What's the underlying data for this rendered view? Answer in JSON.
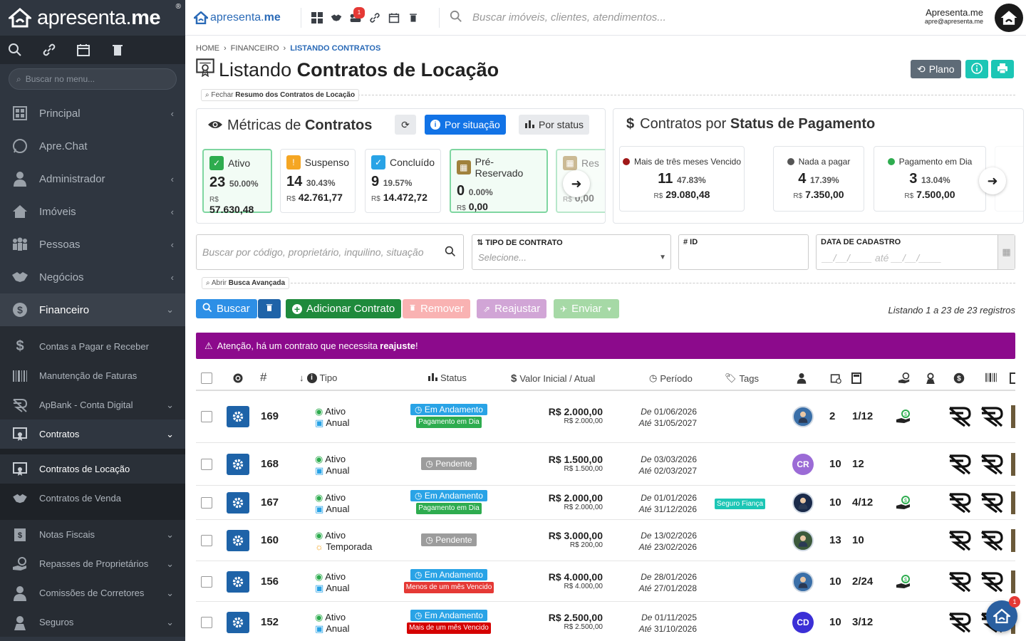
{
  "sidebar": {
    "brand_a": "apresenta",
    "brand_b": "me",
    "reg": "®",
    "search_placeholder": "Buscar no menu...",
    "items": [
      {
        "label": "Principal"
      },
      {
        "label": "Apre.Chat"
      },
      {
        "label": "Administrador"
      },
      {
        "label": "Imóveis"
      },
      {
        "label": "Pessoas"
      },
      {
        "label": "Negócios"
      },
      {
        "label": "Financeiro"
      }
    ],
    "fin_items": [
      {
        "label": "Contas a Pagar e Receber"
      },
      {
        "label": "Manutenção de Faturas"
      },
      {
        "label": "ApBank - Conta Digital"
      },
      {
        "label": "Contratos"
      }
    ],
    "contract_items": [
      {
        "label": "Contratos de Locação"
      },
      {
        "label": "Contratos de Venda"
      }
    ],
    "more_items": [
      {
        "label": "Notas Fiscais"
      },
      {
        "label": "Repasses de Proprietários"
      },
      {
        "label": "Comissões de Corretores"
      },
      {
        "label": "Seguros"
      }
    ]
  },
  "topbar": {
    "brand_a": "apresenta",
    "brand_b": "me",
    "notif_count": "1",
    "search_placeholder": "Buscar imóveis, clientes, atendimentos...",
    "user_name": "Apresenta.me",
    "user_email": "apre@apresenta.me"
  },
  "breadcrumb": {
    "home": "HOME",
    "fin": "FINANCEIRO",
    "current": "LISTANDO CONTRATOS"
  },
  "title": {
    "prefix": "Listando",
    "bold": "Contratos de Locação"
  },
  "header_buttons": {
    "plano": "Plano"
  },
  "resumo": {
    "pre": "Fechar",
    "bold": "Resumo dos Contratos de Locação"
  },
  "metricas": {
    "title_pre": "Métricas de",
    "title_bold": "Contratos",
    "btn_situacao": "Por situação",
    "btn_status": "Por status",
    "cards": [
      {
        "label": "Ativo",
        "count": "23",
        "pct": "50.00%",
        "cur": "R$",
        "value": "57.630,48",
        "color": "#2eac4f"
      },
      {
        "label": "Suspenso",
        "count": "14",
        "pct": "30.43%",
        "cur": "R$",
        "value": "42.761,77",
        "color": "#f5a623"
      },
      {
        "label": "Concluído",
        "count": "9",
        "pct": "19.57%",
        "cur": "R$",
        "value": "14.472,72",
        "color": "#29a3e6"
      },
      {
        "label": "Pré-Reservado",
        "count": "0",
        "pct": "0.00%",
        "cur": "R$",
        "value": "0,00",
        "color": "#a0813c"
      },
      {
        "label": "Res",
        "cur": "R$",
        "value": "0,00",
        "color": "#a0813c"
      }
    ]
  },
  "pagamento": {
    "title_pre": "Contratos por",
    "title_bold": "Status de Pagamento",
    "cards": [
      {
        "label": "Mais de três meses Vencido",
        "count": "11",
        "pct": "47.83%",
        "cur": "R$",
        "value": "29.080,48",
        "color": "#a01818"
      },
      {
        "label": "Nada a pagar",
        "count": "4",
        "pct": "17.39%",
        "cur": "R$",
        "value": "7.350,00",
        "color": "#555555"
      },
      {
        "label": "Pagamento em Dia",
        "count": "3",
        "pct": "13.04%",
        "cur": "R$",
        "value": "7.500,00",
        "color": "#2eac4f"
      }
    ]
  },
  "filters": {
    "search_placeholder": "Buscar por código, proprietário, inquilino, situação",
    "tipo_label": "TIPO DE CONTRATO",
    "tipo_placeholder": "Selecione...",
    "id_label": "# ID",
    "data_label": "DATA DE CADASTRO",
    "data_placeholder": "__/__/____  até  __/__/____"
  },
  "busca_avancada": {
    "pre": "Abrir",
    "bold": "Busca Avançada"
  },
  "actions": {
    "buscar": "Buscar",
    "adicionar": "Adicionar Contrato",
    "remover": "Remover",
    "reajustar": "Reajustar",
    "enviar": "Enviar"
  },
  "listing": "Listando 1 a 23 de 23 registros",
  "alert": {
    "text": "Atenção, há um contrato que necessita",
    "bold": "reajuste",
    "end": "!"
  },
  "table": {
    "headers": {
      "id": "#",
      "tipo": "Tipo",
      "status": "Status",
      "valor": "Valor Inicial / Atual",
      "periodo": "Período",
      "tags": "Tags"
    },
    "rows": [
      {
        "id": "169",
        "situacao": "Ativo",
        "tipo": "Anual",
        "status": "Em Andamento",
        "sub": "Pagamento em Dia",
        "sub_color": "#2eac4f",
        "v1": "R$ 2.000,00",
        "v2": "R$ 2.000,00",
        "de": "De",
        "d1": "01/06/2026",
        "ate": "Até",
        "d2": "31/05/2027",
        "tag": "",
        "av": "",
        "av_color": "#3a6fa8",
        "n1": "2",
        "n2": "1/12",
        "money": true
      },
      {
        "id": "168",
        "situacao": "Ativo",
        "tipo": "Anual",
        "status": "Pendente",
        "sub": "",
        "v1": "R$ 1.500,00",
        "v2": "R$ 1.500,00",
        "de": "De",
        "d1": "03/03/2026",
        "ate": "Até",
        "d2": "02/03/2027",
        "tag": "",
        "av": "CR",
        "av_color": "#9b6bd6",
        "n1": "10",
        "n2": "12",
        "money": false
      },
      {
        "id": "167",
        "situacao": "Ativo",
        "tipo": "Anual",
        "status": "Em Andamento",
        "sub": "Pagamento em Dia",
        "sub_color": "#2eac4f",
        "v1": "R$ 2.000,00",
        "v2": "R$ 2.000,00",
        "de": "De",
        "d1": "01/01/2026",
        "ate": "Até",
        "d2": "31/12/2026",
        "tag": "Seguro Fiança",
        "av": "",
        "av_color": "#1a2a4a",
        "n1": "10",
        "n2": "4/12",
        "money": true
      },
      {
        "id": "160",
        "situacao": "Ativo",
        "tipo": "Temporada",
        "status": "Pendente",
        "sub": "",
        "v1": "R$ 3.000,00",
        "v2": "R$ 200,00",
        "de": "De",
        "d1": "13/02/2026",
        "ate": "Até",
        "d2": "23/02/2026",
        "tag": "",
        "av": "",
        "av_color": "#3c5a3c",
        "n1": "13",
        "n2": "10",
        "money": false
      },
      {
        "id": "156",
        "situacao": "Ativo",
        "tipo": "Anual",
        "status": "Em Andamento",
        "sub": "Menos de um mês Vencido",
        "sub_color": "#e53935",
        "v1": "R$ 4.000,00",
        "v2": "R$ 4.000,00",
        "de": "De",
        "d1": "28/01/2026",
        "ate": "Até",
        "d2": "27/01/2028",
        "tag": "",
        "av": "",
        "av_color": "#3a6fa8",
        "n1": "10",
        "n2": "2/24",
        "money": true
      },
      {
        "id": "152",
        "situacao": "Ativo",
        "tipo": "Anual",
        "status": "Em Andamento",
        "sub": "Mais de um mês Vencido",
        "sub_color": "#d50000",
        "v1": "R$ 2.500,00",
        "v2": "R$ 2.500,00",
        "de": "De",
        "d1": "01/11/2025",
        "ate": "Até",
        "d2": "31/10/2026",
        "tag": "",
        "av": "CD",
        "av_color": "#3b2fd6",
        "n1": "10",
        "n2": "3/12",
        "money": false
      }
    ]
  },
  "fab_badge": "1"
}
